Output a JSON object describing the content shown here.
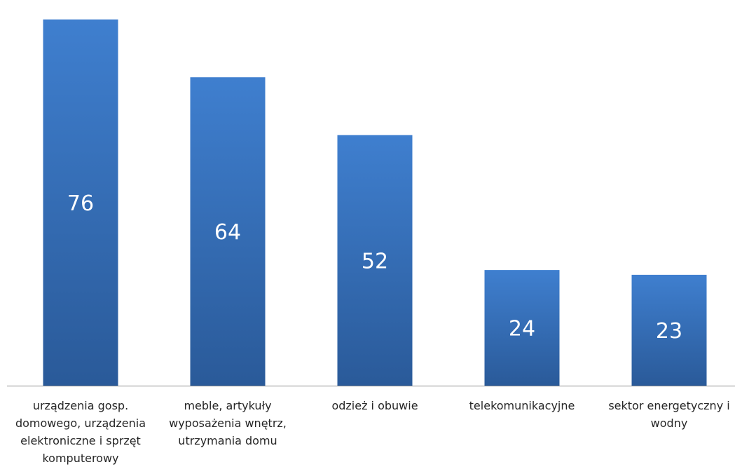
{
  "chart_data": {
    "type": "bar",
    "categories": [
      "urządzenia gosp. domowego, urządzenia elektroniczne i sprzęt komputerowy",
      "meble, artykuły wyposażenia wnętrz, utrzymania domu",
      "odzież i obuwie",
      "telekomunikacyjne",
      "sektor energetyczny i wodny"
    ],
    "values": [
      76,
      64,
      52,
      24,
      23
    ],
    "value_labels": [
      "76",
      "64",
      "52",
      "24",
      "23"
    ],
    "title": "",
    "xlabel": "",
    "ylabel": "",
    "ylim": [
      0,
      78
    ],
    "grid": false,
    "legend": "none",
    "colors": {
      "bar_top": "#3f7fcf",
      "bar_bottom": "#2a5a99",
      "axis": "#8c8c8c",
      "value_text": "#ffffff",
      "label_text": "#262626"
    }
  }
}
